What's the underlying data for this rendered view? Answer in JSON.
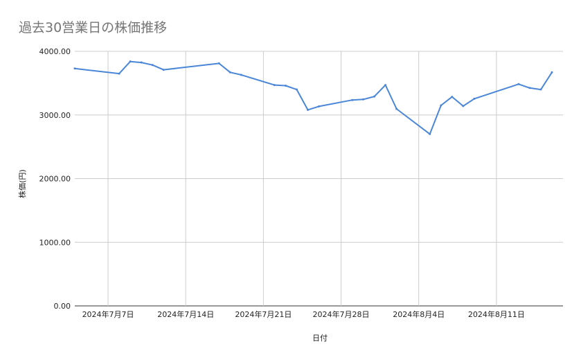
{
  "chart_data": {
    "type": "line",
    "title": "過去30営業日の株価推移",
    "xlabel": "日付",
    "ylabel": "株価(円)",
    "ylim": [
      0,
      4000
    ],
    "yticks": [
      "0.00",
      "1000.00",
      "2000.00",
      "3000.00",
      "4000.00"
    ],
    "xlim": [
      "2024-07-04",
      "2024-08-17"
    ],
    "xticks": [
      {
        "date": "2024-07-07",
        "label": "2024年7月7日"
      },
      {
        "date": "2024-07-14",
        "label": "2024年7月14日"
      },
      {
        "date": "2024-07-21",
        "label": "2024年7月21日"
      },
      {
        "date": "2024-07-28",
        "label": "2024年7月28日"
      },
      {
        "date": "2024-08-04",
        "label": "2024年8月4日"
      },
      {
        "date": "2024-08-11",
        "label": "2024年8月11日"
      }
    ],
    "grid": true,
    "line_color": "#4a86d8",
    "series": [
      {
        "name": "",
        "points": [
          {
            "x": "2024-07-04",
            "y": 3730
          },
          {
            "x": "2024-07-08",
            "y": 3650
          },
          {
            "x": "2024-07-09",
            "y": 3840
          },
          {
            "x": "2024-07-10",
            "y": 3825
          },
          {
            "x": "2024-07-11",
            "y": 3785
          },
          {
            "x": "2024-07-12",
            "y": 3710
          },
          {
            "x": "2024-07-17",
            "y": 3810
          },
          {
            "x": "2024-07-18",
            "y": 3670
          },
          {
            "x": "2024-07-19",
            "y": 3630
          },
          {
            "x": "2024-07-22",
            "y": 3470
          },
          {
            "x": "2024-07-23",
            "y": 3460
          },
          {
            "x": "2024-07-24",
            "y": 3400
          },
          {
            "x": "2024-07-25",
            "y": 3080
          },
          {
            "x": "2024-07-26",
            "y": 3135
          },
          {
            "x": "2024-07-29",
            "y": 3235
          },
          {
            "x": "2024-07-30",
            "y": 3245
          },
          {
            "x": "2024-07-31",
            "y": 3290
          },
          {
            "x": "2024-08-01",
            "y": 3470
          },
          {
            "x": "2024-08-02",
            "y": 3095
          },
          {
            "x": "2024-08-05",
            "y": 2700
          },
          {
            "x": "2024-08-06",
            "y": 3150
          },
          {
            "x": "2024-08-07",
            "y": 3285
          },
          {
            "x": "2024-08-08",
            "y": 3140
          },
          {
            "x": "2024-08-09",
            "y": 3255
          },
          {
            "x": "2024-08-13",
            "y": 3485
          },
          {
            "x": "2024-08-14",
            "y": 3425
          },
          {
            "x": "2024-08-15",
            "y": 3400
          },
          {
            "x": "2024-08-16",
            "y": 3670
          }
        ]
      }
    ]
  }
}
